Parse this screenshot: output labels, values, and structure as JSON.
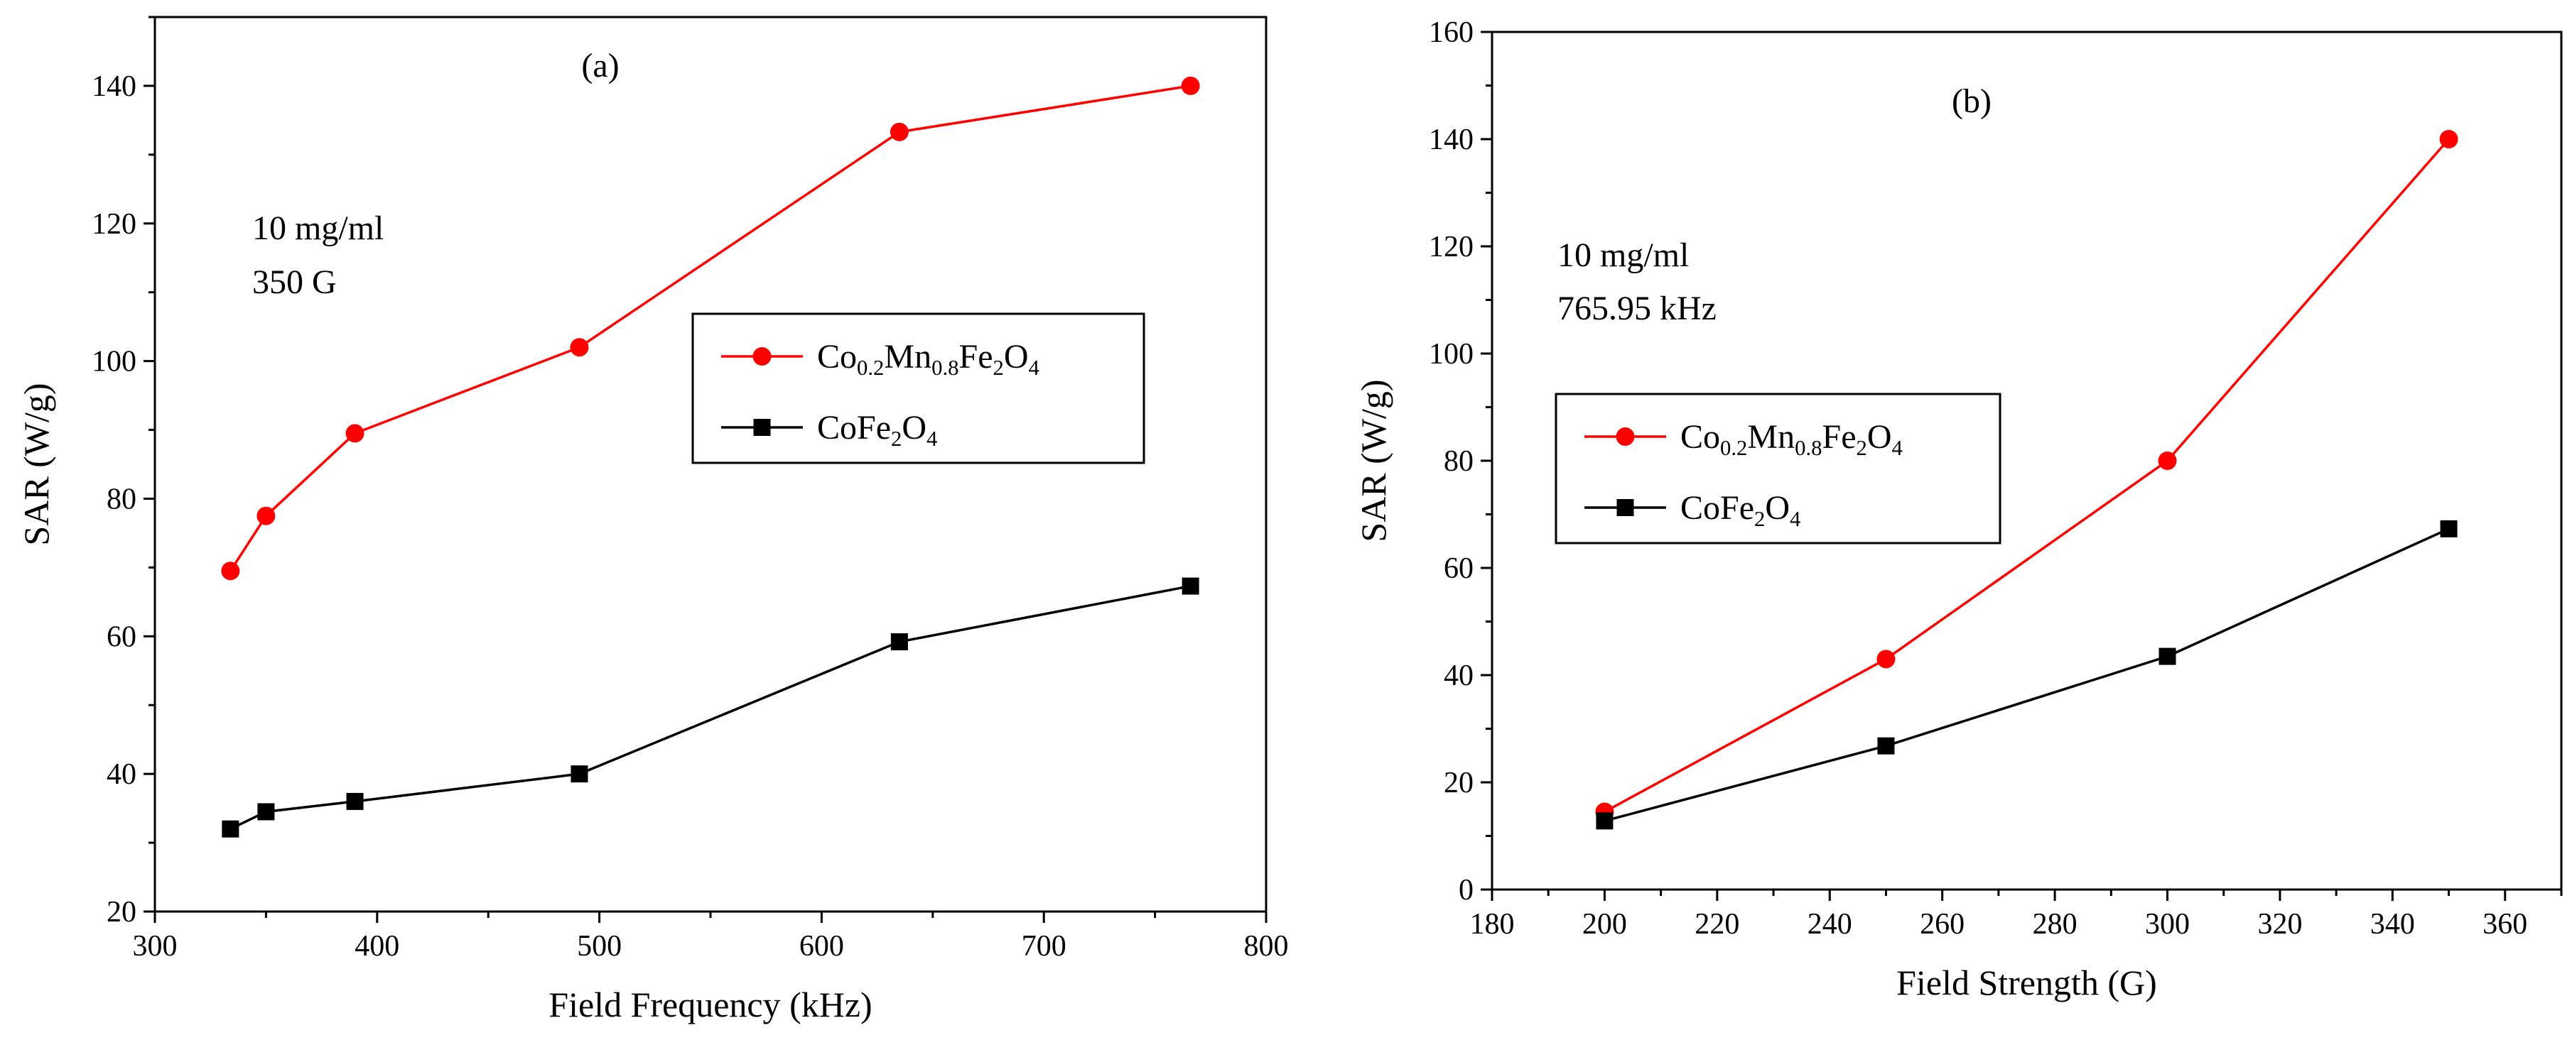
{
  "colors": {
    "series_a": "#ff0000",
    "series_b": "#000000",
    "axis": "#000000"
  },
  "legend_labels": {
    "cmf": {
      "p1": "Co",
      "s1": "0.2",
      "p2": "Mn",
      "s2": "0.8",
      "p3": "Fe",
      "s3": "2",
      "p4": "O",
      "s4": "4"
    },
    "cfo": {
      "p1": "CoFe",
      "s1": "2",
      "p2": "O",
      "s2": "4"
    }
  },
  "chart_data": [
    {
      "type": "line",
      "panel_label": "(a)",
      "xlabel": "Field Frequency (kHz)",
      "ylabel": "SAR (W/g)",
      "xlim": [
        300,
        800
      ],
      "ylim": [
        20,
        150
      ],
      "xticks": [
        300,
        400,
        500,
        600,
        700,
        800
      ],
      "yticks": [
        20,
        40,
        60,
        80,
        100,
        120,
        140
      ],
      "annotation": [
        "10 mg/ml",
        "350 G"
      ],
      "legend_position": "center-right",
      "series": [
        {
          "name": "Co0.2Mn0.8Fe2O4",
          "color": "#ff0000",
          "marker": "circle",
          "x": [
            334,
            350,
            390,
            491,
            635,
            766
          ],
          "y": [
            69.5,
            77.5,
            89.5,
            102,
            133.3,
            140
          ]
        },
        {
          "name": "CoFe2O4",
          "color": "#000000",
          "marker": "square",
          "x": [
            334,
            350,
            390,
            491,
            635,
            766
          ],
          "y": [
            32,
            34.5,
            36,
            40,
            59.2,
            67.3
          ]
        }
      ]
    },
    {
      "type": "line",
      "panel_label": "(b)",
      "xlabel": "Field Strength (G)",
      "ylabel": "SAR (W/g)",
      "xlim": [
        180,
        370
      ],
      "ylim": [
        0,
        160
      ],
      "xticks": [
        180,
        200,
        220,
        240,
        260,
        280,
        300,
        320,
        340,
        360
      ],
      "yticks": [
        0,
        20,
        40,
        60,
        80,
        100,
        120,
        140,
        160
      ],
      "annotation": [
        "10 mg/ml",
        "765.95 kHz"
      ],
      "legend_position": "center-left",
      "series": [
        {
          "name": "Co0.2Mn0.8Fe2O4",
          "color": "#ff0000",
          "marker": "circle",
          "x": [
            200,
            250,
            300,
            350
          ],
          "y": [
            14.5,
            43,
            80,
            140
          ]
        },
        {
          "name": "CoFe2O4",
          "color": "#000000",
          "marker": "square",
          "x": [
            200,
            250,
            300,
            350
          ],
          "y": [
            12.8,
            26.8,
            43.5,
            67.3
          ]
        }
      ]
    }
  ]
}
